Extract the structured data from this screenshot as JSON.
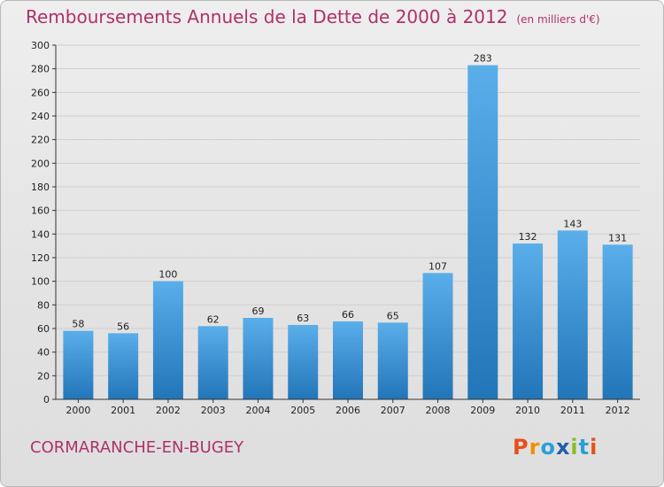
{
  "header": {
    "title": "Remboursements Annuels de la Dette de 2000 à 2012",
    "unit": "(en milliers d'€)"
  },
  "footer": {
    "commune": "CORMARANCHE-EN-BUGEY",
    "logo": {
      "letters": [
        "P",
        "r",
        "o",
        "x",
        "i",
        "t",
        "i"
      ],
      "colors": [
        "#e8501a",
        "#f29100",
        "#2a9fd8",
        "#1f5faa",
        "#8dbb2b",
        "#2a9fd8",
        "#e8501a"
      ]
    }
  },
  "colors": {
    "bar_light": "#5aaeea",
    "bar_dark": "#2275b8",
    "grid": "#cfcfcf",
    "axis": "#333333",
    "title": "#b0306a"
  },
  "chart_data": {
    "type": "bar",
    "title": "Remboursements Annuels de la Dette de 2000 à 2012",
    "xlabel": "",
    "ylabel": "",
    "categories": [
      "2000",
      "2001",
      "2002",
      "2003",
      "2004",
      "2005",
      "2006",
      "2007",
      "2008",
      "2009",
      "2010",
      "2011",
      "2012"
    ],
    "values": [
      58,
      56,
      100,
      62,
      69,
      63,
      66,
      65,
      107,
      283,
      132,
      143,
      131
    ],
    "ylim": [
      0,
      300
    ],
    "yticks": [
      0,
      20,
      40,
      60,
      80,
      100,
      120,
      140,
      160,
      180,
      200,
      220,
      240,
      260,
      280,
      300
    ],
    "grid": true,
    "legend": "none"
  }
}
